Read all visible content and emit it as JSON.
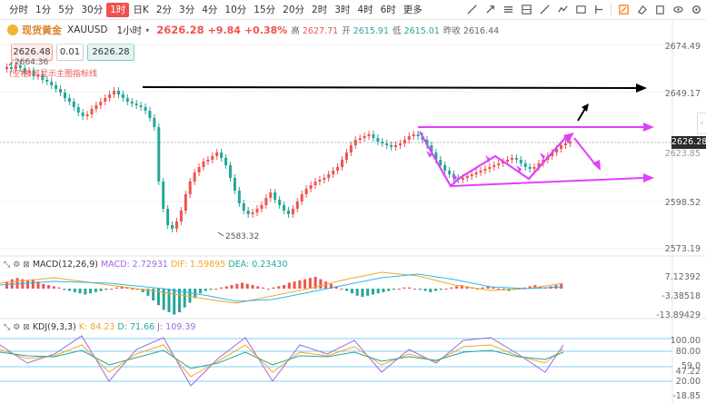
{
  "toolbar": {
    "timeframes": [
      "分时",
      "1分",
      "5分",
      "30分",
      "1时",
      "日K",
      "2分",
      "3分",
      "4分",
      "10分",
      "15分",
      "20分",
      "2时",
      "3时",
      "4时",
      "6时",
      "更多"
    ],
    "active_timeframe": "1时",
    "tool_icons": [
      "draw-line-icon",
      "zoom-icon",
      "indicator-icon",
      "layout-icon",
      "pen-icon",
      "text-icon",
      "image-icon",
      "lock-icon",
      "eraser-icon",
      "copy-icon",
      "eye-icon",
      "settings-icon"
    ]
  },
  "symbol": {
    "name": "现货黄金",
    "code": "XAUUSD",
    "period": "1小时",
    "price": "2626.28",
    "change": "+9.84",
    "change_pct": "+0.38%",
    "high_label": "高",
    "high": "2627.71",
    "open_label": "开",
    "open": "2615.91",
    "low_label": "低",
    "low": "2615.01",
    "prev_label": "昨收",
    "prev": "2616.44"
  },
  "trade": {
    "bid": "2626.48",
    "qty": "0.01",
    "ask": "2626.28"
  },
  "chart_note": "(空格)可显示主图指标线",
  "high_marker": "2664.36",
  "low_marker": "2583.32",
  "price_axis": [
    "2674.49",
    "2649.17",
    "2626.28",
    "2623.85",
    "2598.52",
    "2573.19"
  ],
  "current_price": "2626.28",
  "macd": {
    "name": "MACD(12,26,9)",
    "macd_label": "MACD: 2.72931",
    "dif_label": "DIF: 1.59895",
    "dea_label": "DEA: 0.23430",
    "axis": [
      "7.12392",
      "-3.38518",
      "-13.89429"
    ]
  },
  "kdj": {
    "name": "KDJ(9,3,3)",
    "k_label": "K: 84.23",
    "d_label": "D: 71.66",
    "j_label": "J: 109.39",
    "axis": [
      "100.00",
      "80.00",
      "59.0",
      "47.22",
      "20.00",
      "-18.85"
    ]
  },
  "colors": {
    "up": "#ef5350",
    "down": "#26a69a",
    "arrow": "#e040fb",
    "line": "#000000"
  }
}
